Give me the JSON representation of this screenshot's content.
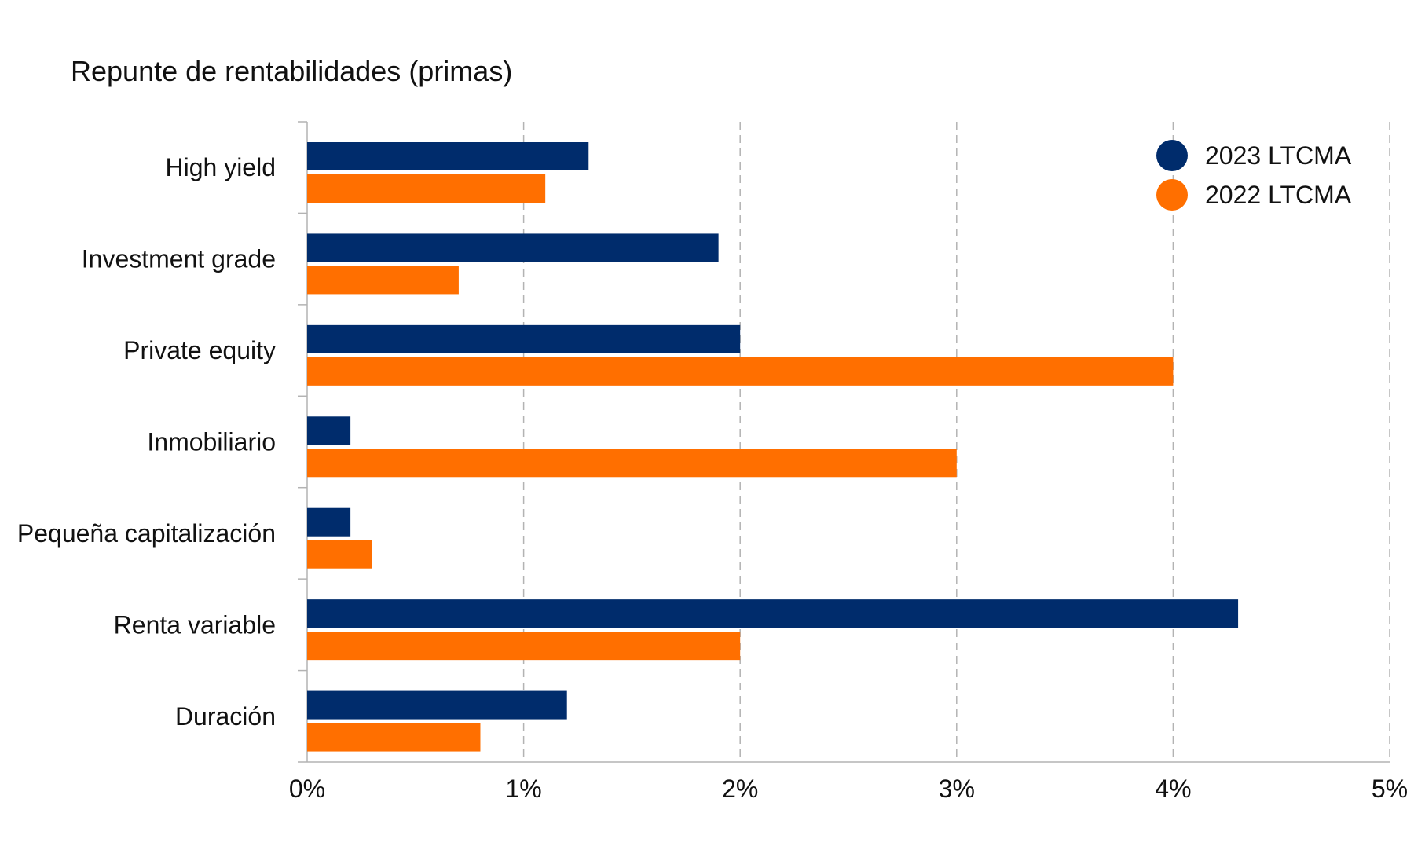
{
  "chart_data": {
    "type": "bar",
    "orientation": "horizontal",
    "title": "Repunte de rentabilidades (primas)",
    "xlabel": "",
    "ylabel": "",
    "categories": [
      "High yield",
      "Investment grade",
      "Private equity",
      "Inmobiliario",
      "Pequeña capitalización",
      "Renta variable",
      "Duración"
    ],
    "series": [
      {
        "name": "2023 LTCMA",
        "color": "#002c6c",
        "values": [
          1.3,
          1.9,
          2.0,
          0.2,
          0.2,
          4.3,
          1.2
        ]
      },
      {
        "name": "2022 LTCMA",
        "color": "#ff6f00",
        "values": [
          1.1,
          0.7,
          4.0,
          3.0,
          0.3,
          2.0,
          0.8
        ]
      }
    ],
    "xlim": [
      0,
      5
    ],
    "xticks": [
      0,
      1,
      2,
      3,
      4,
      5
    ],
    "xtick_labels": [
      "0%",
      "1%",
      "2%",
      "3%",
      "4%",
      "5%"
    ],
    "grid": "vertical dashed",
    "legend_position": "top-right"
  }
}
